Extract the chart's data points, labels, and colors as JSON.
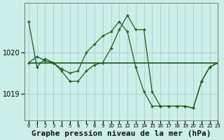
{
  "background_color": "#cceee8",
  "grid_color": "#aacccc",
  "line_color": "#1a5c1a",
  "xlabel": "Graphe pression niveau de la mer (hPa)",
  "xlabel_fontsize": 8,
  "xlim": [
    -0.5,
    23
  ],
  "ylim": [
    1018.35,
    1021.2
  ],
  "yticks": [
    1019,
    1020
  ],
  "ytick_fontsize": 7,
  "xtick_fontsize": 5,
  "line1_x": [
    0,
    1,
    2,
    3,
    4,
    5,
    6,
    7,
    8,
    9,
    10,
    11,
    12,
    13,
    14,
    15,
    16,
    17,
    18,
    19,
    20,
    21,
    22,
    23
  ],
  "line1_y": [
    1020.75,
    1019.65,
    1019.85,
    1019.75,
    1019.55,
    1019.3,
    1019.3,
    1019.55,
    1019.7,
    1019.75,
    1020.1,
    1020.55,
    1020.9,
    1020.55,
    1020.55,
    1019.05,
    1018.7,
    1018.7,
    1018.7,
    1018.7,
    1018.65,
    1019.3,
    1019.65,
    1019.75
  ],
  "line2_x": [
    0,
    1,
    2,
    3,
    4,
    5,
    6,
    7,
    8,
    9,
    10,
    11,
    12,
    13,
    14,
    15,
    16,
    17,
    18,
    19,
    20,
    21,
    22,
    23
  ],
  "line2_y": [
    1019.75,
    1019.9,
    1019.8,
    1019.75,
    1019.6,
    1019.5,
    1019.55,
    1020.0,
    1020.2,
    1020.4,
    1020.5,
    1020.75,
    1020.5,
    1019.65,
    1019.05,
    1018.7,
    1018.7,
    1018.7,
    1018.7,
    1018.7,
    1018.65,
    1019.3,
    1019.65,
    1019.75
  ],
  "line3_x": [
    0,
    1,
    2,
    3,
    4,
    5,
    6,
    7,
    8,
    9,
    10,
    11,
    12,
    13,
    14,
    15,
    16,
    17,
    18,
    19,
    20,
    21,
    22,
    23
  ],
  "line3_y": [
    1019.75,
    1019.75,
    1019.75,
    1019.75,
    1019.75,
    1019.75,
    1019.75,
    1019.75,
    1019.75,
    1019.75,
    1019.75,
    1019.75,
    1019.75,
    1019.75,
    1019.75,
    1019.75,
    1019.75,
    1019.75,
    1019.75,
    1019.75,
    1019.75,
    1019.75,
    1019.75,
    1019.75
  ]
}
